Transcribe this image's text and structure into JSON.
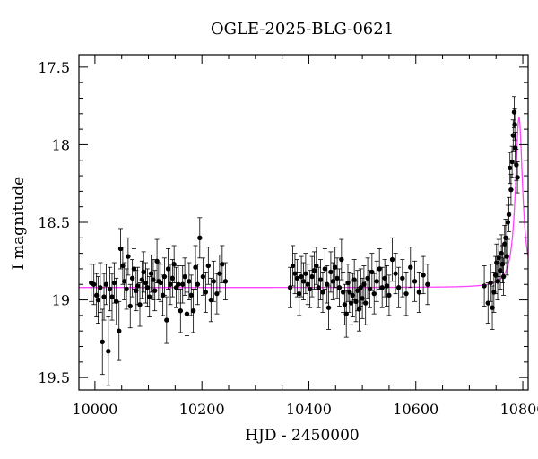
{
  "chart_data": {
    "type": "scatter",
    "title": "OGLE-2025-BLG-0621",
    "xlabel": "HJD - 2450000",
    "ylabel": "I magnitude",
    "xlim": [
      9970,
      10810
    ],
    "ylim": [
      19.58,
      17.42
    ],
    "y_inverted": true,
    "grid": false,
    "x_ticks": [
      10000,
      10200,
      10400,
      10600,
      10800
    ],
    "y_ticks": [
      17.5,
      18,
      18.5,
      19,
      19.5
    ],
    "x_tick_labels": [
      "10000",
      "10200",
      "10400",
      "10600",
      "10800"
    ],
    "y_tick_labels": [
      "17.5",
      "18",
      "18.5",
      "19",
      "19.5"
    ],
    "colors": {
      "points": "#000000",
      "model": "#ff44ff",
      "frame": "#000000"
    },
    "model": {
      "baseline": 18.92,
      "peak_time": 10793,
      "peak_mag": 17.82,
      "timescale": 8
    },
    "series": [
      {
        "type": "scatter",
        "points": [
          [
            9993,
            18.89,
            0.12
          ],
          [
            9998,
            18.9,
            0.13
          ],
          [
            10003,
            18.97,
            0.14
          ],
          [
            10006,
            19.0,
            0.15
          ],
          [
            10010,
            18.92,
            0.16
          ],
          [
            10014,
            19.27,
            0.21
          ],
          [
            10017,
            18.98,
            0.15
          ],
          [
            10021,
            18.9,
            0.13
          ],
          [
            10025,
            19.33,
            0.22
          ],
          [
            10028,
            18.93,
            0.14
          ],
          [
            10032,
            18.98,
            0.15
          ],
          [
            10036,
            18.89,
            0.13
          ],
          [
            10040,
            19.01,
            0.15
          ],
          [
            10045,
            19.2,
            0.19
          ],
          [
            10048,
            18.67,
            0.13
          ],
          [
            10052,
            18.78,
            0.12
          ],
          [
            10055,
            18.88,
            0.12
          ],
          [
            10059,
            18.93,
            0.13
          ],
          [
            10062,
            18.72,
            0.12
          ],
          [
            10066,
            19.04,
            0.14
          ],
          [
            10070,
            18.86,
            0.12
          ],
          [
            10073,
            18.8,
            0.13
          ],
          [
            10077,
            18.94,
            0.13
          ],
          [
            10080,
            18.91,
            0.12
          ],
          [
            10084,
            19.03,
            0.14
          ],
          [
            10088,
            18.87,
            0.12
          ],
          [
            10091,
            18.82,
            0.13
          ],
          [
            10095,
            18.89,
            0.13
          ],
          [
            10098,
            18.92,
            0.12
          ],
          [
            10102,
            18.98,
            0.13
          ],
          [
            10105,
            18.83,
            0.12
          ],
          [
            10109,
            18.87,
            0.13
          ],
          [
            10112,
            18.94,
            0.13
          ],
          [
            10116,
            18.75,
            0.14
          ],
          [
            10119,
            18.88,
            0.12
          ],
          [
            10123,
            18.89,
            0.12
          ],
          [
            10127,
            18.97,
            0.13
          ],
          [
            10130,
            18.85,
            0.12
          ],
          [
            10134,
            19.13,
            0.15
          ],
          [
            10137,
            18.8,
            0.13
          ],
          [
            10141,
            18.9,
            0.13
          ],
          [
            10145,
            18.86,
            0.12
          ],
          [
            10148,
            18.77,
            0.12
          ],
          [
            10152,
            18.92,
            0.13
          ],
          [
            10156,
            18.9,
            0.12
          ],
          [
            10160,
            19.07,
            0.14
          ],
          [
            10164,
            18.9,
            0.12
          ],
          [
            10168,
            18.85,
            0.12
          ],
          [
            10172,
            19.09,
            0.14
          ],
          [
            10176,
            18.88,
            0.12
          ],
          [
            10180,
            18.97,
            0.13
          ],
          [
            10184,
            19.07,
            0.14
          ],
          [
            10188,
            18.79,
            0.14
          ],
          [
            10192,
            18.9,
            0.13
          ],
          [
            10196,
            18.6,
            0.13
          ],
          [
            10202,
            18.85,
            0.12
          ],
          [
            10207,
            18.95,
            0.13
          ],
          [
            10212,
            18.78,
            0.12
          ],
          [
            10217,
            19.0,
            0.14
          ],
          [
            10222,
            18.88,
            0.13
          ],
          [
            10228,
            18.96,
            0.13
          ],
          [
            10233,
            18.83,
            0.12
          ],
          [
            10238,
            18.77,
            0.12
          ],
          [
            10244,
            18.88,
            0.12
          ],
          [
            10365,
            18.92,
            0.13
          ],
          [
            10370,
            18.78,
            0.13
          ],
          [
            10374,
            18.83,
            0.13
          ],
          [
            10378,
            18.86,
            0.12
          ],
          [
            10382,
            18.96,
            0.14
          ],
          [
            10386,
            18.85,
            0.13
          ],
          [
            10390,
            18.88,
            0.12
          ],
          [
            10394,
            18.83,
            0.13
          ],
          [
            10398,
            18.9,
            0.13
          ],
          [
            10402,
            18.93,
            0.12
          ],
          [
            10406,
            18.85,
            0.13
          ],
          [
            10410,
            18.81,
            0.12
          ],
          [
            10414,
            18.78,
            0.12
          ],
          [
            10418,
            18.92,
            0.13
          ],
          [
            10422,
            18.87,
            0.13
          ],
          [
            10426,
            18.95,
            0.13
          ],
          [
            10430,
            18.8,
            0.13
          ],
          [
            10434,
            18.9,
            0.12
          ],
          [
            10437,
            19.05,
            0.14
          ],
          [
            10441,
            18.82,
            0.13
          ],
          [
            10445,
            18.88,
            0.12
          ],
          [
            10449,
            18.79,
            0.13
          ],
          [
            10453,
            18.86,
            0.13
          ],
          [
            10457,
            18.92,
            0.12
          ],
          [
            10461,
            18.74,
            0.13
          ],
          [
            10464,
            18.95,
            0.13
          ],
          [
            10467,
            19.03,
            0.13
          ],
          [
            10470,
            19.09,
            0.15
          ],
          [
            10473,
            18.89,
            0.12
          ],
          [
            10476,
            18.95,
            0.13
          ],
          [
            10479,
            19.02,
            0.14
          ],
          [
            10482,
            18.97,
            0.14
          ],
          [
            10485,
            18.87,
            0.13
          ],
          [
            10488,
            19.01,
            0.13
          ],
          [
            10491,
            18.94,
            0.13
          ],
          [
            10494,
            19.06,
            0.14
          ],
          [
            10497,
            18.92,
            0.12
          ],
          [
            10500,
            18.99,
            0.13
          ],
          [
            10503,
            18.9,
            0.12
          ],
          [
            10506,
            19.02,
            0.14
          ],
          [
            10510,
            18.86,
            0.13
          ],
          [
            10514,
            18.93,
            0.12
          ],
          [
            10518,
            18.82,
            0.12
          ],
          [
            10522,
            18.96,
            0.13
          ],
          [
            10527,
            18.88,
            0.13
          ],
          [
            10532,
            18.8,
            0.13
          ],
          [
            10537,
            18.92,
            0.13
          ],
          [
            10542,
            18.86,
            0.12
          ],
          [
            10546,
            18.91,
            0.13
          ],
          [
            10550,
            18.97,
            0.13
          ],
          [
            10556,
            18.74,
            0.14
          ],
          [
            10562,
            18.83,
            0.13
          ],
          [
            10568,
            18.92,
            0.13
          ],
          [
            10575,
            18.86,
            0.12
          ],
          [
            10582,
            18.96,
            0.14
          ],
          [
            10590,
            18.79,
            0.13
          ],
          [
            10598,
            18.88,
            0.13
          ],
          [
            10606,
            18.95,
            0.13
          ],
          [
            10614,
            18.84,
            0.12
          ],
          [
            10622,
            18.9,
            0.13
          ],
          [
            10728,
            18.91,
            0.13
          ],
          [
            10735,
            19.02,
            0.13
          ],
          [
            10740,
            18.89,
            0.12
          ],
          [
            10743,
            19.05,
            0.14
          ],
          [
            10746,
            18.95,
            0.13
          ],
          [
            10749,
            18.84,
            0.12
          ],
          [
            10751,
            18.76,
            0.12
          ],
          [
            10753,
            18.88,
            0.12
          ],
          [
            10755,
            18.73,
            0.12
          ],
          [
            10758,
            18.81,
            0.12
          ],
          [
            10760,
            18.7,
            0.12
          ],
          [
            10762,
            18.77,
            0.12
          ],
          [
            10764,
            18.85,
            0.12
          ],
          [
            10766,
            18.64,
            0.12
          ],
          [
            10768,
            18.6,
            0.12
          ],
          [
            10770,
            18.72,
            0.12
          ],
          [
            10772,
            18.5,
            0.11
          ],
          [
            10774,
            18.45,
            0.11
          ],
          [
            10776,
            18.15,
            0.1
          ],
          [
            10778,
            18.29,
            0.1
          ],
          [
            10780,
            18.11,
            0.1
          ],
          [
            10782,
            17.94,
            0.1
          ],
          [
            10784,
            17.79,
            0.1
          ],
          [
            10785,
            17.87,
            0.1
          ],
          [
            10786,
            18.02,
            0.1
          ],
          [
            10788,
            18.13,
            0.1
          ],
          [
            10790,
            18.21,
            0.1
          ]
        ]
      }
    ]
  }
}
